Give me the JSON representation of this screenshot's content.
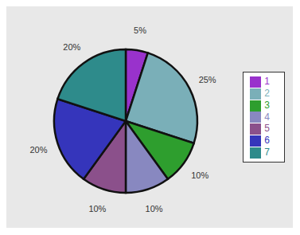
{
  "chart_data": {
    "type": "pie",
    "categories": [
      "1",
      "2",
      "3",
      "4",
      "5",
      "6",
      "7"
    ],
    "values": [
      5,
      25,
      10,
      10,
      10,
      20,
      20
    ],
    "value_labels": [
      "5%",
      "25%",
      "10%",
      "10%",
      "10%",
      "20%",
      "20%"
    ],
    "colors": [
      "#9932cc",
      "#7aafb8",
      "#2e9e2e",
      "#8888c0",
      "#8b508b",
      "#3535bb",
      "#2e8b8b"
    ],
    "legend": "right",
    "data_labels": true
  }
}
